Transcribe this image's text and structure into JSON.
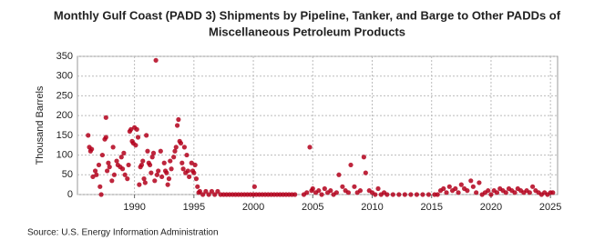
{
  "chart_data": {
    "type": "scatter",
    "title": "Monthly Gulf Coast (PADD 3) Shipments by Pipeline, Tanker, and Barge to Other PADDs of",
    "subtitle": "Miscellaneous Petroleum Products",
    "y_label": "Thousand Barrels",
    "source": "Source: U.S. Energy Information Administration",
    "color": "#b3001b",
    "grid": true,
    "xlim": [
      1985.2,
      2025.6
    ],
    "ylim": [
      0,
      350
    ],
    "xticks": [
      1990,
      1995,
      2000,
      2005,
      2010,
      2015,
      2020,
      2025
    ],
    "yticks": [
      0,
      50,
      100,
      150,
      200,
      250,
      300,
      350
    ],
    "x": [
      1986.1,
      1986.2,
      1986.3,
      1986.4,
      1986.5,
      1986.7,
      1986.8,
      1987.0,
      1987.1,
      1987.2,
      1987.3,
      1987.5,
      1987.6,
      1987.7,
      1987.8,
      1987.9,
      1987.6,
      1988.1,
      1988.2,
      1988.3,
      1988.5,
      1988.6,
      1988.8,
      1988.9,
      1989.0,
      1989.1,
      1989.2,
      1989.4,
      1989.5,
      1989.6,
      1989.7,
      1989.8,
      1989.9,
      1990.0,
      1990.1,
      1990.2,
      1990.3,
      1990.4,
      1990.5,
      1990.6,
      1990.7,
      1990.8,
      1990.9,
      1991.0,
      1991.1,
      1991.2,
      1991.3,
      1991.4,
      1991.5,
      1991.6,
      1991.7,
      1991.8,
      1991.9,
      1992.0,
      1992.2,
      1992.3,
      1992.5,
      1992.6,
      1992.7,
      1992.8,
      1992.9,
      1993.0,
      1993.1,
      1993.3,
      1993.4,
      1993.5,
      1993.6,
      1993.7,
      1993.8,
      1993.9,
      1994.0,
      1994.1,
      1994.2,
      1994.3,
      1994.4,
      1994.5,
      1994.6,
      1994.8,
      1994.9,
      1995.0,
      1995.1,
      1995.2,
      1995.3,
      1995.4,
      1995.5,
      1995.75,
      1996.0,
      1996.25,
      1996.5,
      1996.75,
      1997.0,
      1997.25,
      1997.5,
      1997.75,
      1998.0,
      1998.25,
      1998.5,
      1998.75,
      1999.0,
      1999.25,
      1999.5,
      1999.75,
      2000.0,
      2000.1,
      2000.25,
      2000.5,
      2000.75,
      2001.0,
      2001.25,
      2001.5,
      2001.75,
      2002.0,
      2002.25,
      2002.5,
      2002.75,
      2003.0,
      2003.25,
      2003.5,
      2004.25,
      2004.5,
      2004.75,
      2004.9,
      2005.0,
      2005.25,
      2005.5,
      2005.75,
      2006.0,
      2006.25,
      2006.5,
      2006.75,
      2007.0,
      2007.2,
      2007.5,
      2007.75,
      2008.0,
      2008.2,
      2008.5,
      2008.75,
      2009.0,
      2009.3,
      2009.45,
      2009.75,
      2010.0,
      2010.25,
      2010.5,
      2010.75,
      2011.0,
      2011.25,
      2011.75,
      2012.25,
      2012.75,
      2013.25,
      2013.75,
      2014.25,
      2014.75,
      2015.25,
      2015.5,
      2015.75,
      2016.0,
      2016.25,
      2016.5,
      2016.75,
      2017.0,
      2017.25,
      2017.5,
      2017.75,
      2018.0,
      2018.3,
      2018.5,
      2018.75,
      2019.0,
      2019.25,
      2019.5,
      2019.75,
      2020.0,
      2020.25,
      2020.5,
      2020.75,
      2021.0,
      2021.25,
      2021.5,
      2021.75,
      2022.0,
      2022.25,
      2022.5,
      2022.75,
      2023.0,
      2023.25,
      2023.5,
      2023.75,
      2024.0,
      2024.25,
      2024.5,
      2024.75,
      2025.0,
      2025.2
    ],
    "values": [
      150,
      120,
      110,
      115,
      45,
      60,
      50,
      75,
      20,
      0,
      100,
      140,
      145,
      60,
      80,
      70,
      195,
      35,
      120,
      50,
      85,
      75,
      70,
      95,
      65,
      105,
      50,
      40,
      75,
      160,
      165,
      135,
      130,
      170,
      125,
      165,
      145,
      25,
      70,
      75,
      85,
      40,
      30,
      150,
      110,
      80,
      75,
      55,
      95,
      105,
      35,
      340,
      50,
      60,
      110,
      45,
      80,
      60,
      55,
      25,
      40,
      85,
      65,
      95,
      110,
      120,
      175,
      190,
      135,
      130,
      80,
      65,
      120,
      55,
      100,
      60,
      45,
      80,
      60,
      55,
      75,
      40,
      20,
      5,
      8,
      0,
      8,
      0,
      8,
      0,
      8,
      0,
      0,
      0,
      0,
      0,
      0,
      0,
      0,
      0,
      0,
      0,
      0,
      20,
      0,
      0,
      0,
      0,
      0,
      0,
      0,
      0,
      0,
      0,
      0,
      0,
      0,
      0,
      0,
      5,
      120,
      10,
      15,
      5,
      10,
      0,
      15,
      5,
      10,
      0,
      5,
      50,
      20,
      10,
      5,
      75,
      20,
      5,
      10,
      95,
      55,
      10,
      5,
      0,
      15,
      0,
      5,
      0,
      0,
      0,
      0,
      0,
      0,
      0,
      0,
      0,
      0,
      10,
      15,
      5,
      20,
      10,
      15,
      5,
      25,
      15,
      10,
      35,
      20,
      5,
      30,
      0,
      5,
      10,
      0,
      10,
      5,
      15,
      10,
      5,
      15,
      10,
      5,
      15,
      10,
      5,
      10,
      5,
      20,
      10,
      5,
      0,
      5,
      0,
      5,
      5
    ]
  }
}
